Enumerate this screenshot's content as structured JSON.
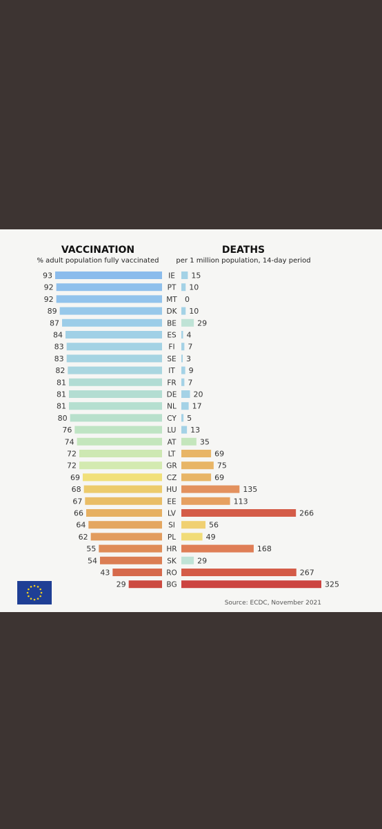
{
  "chart_data": {
    "type": "bar",
    "source": "Source: ECDC, November 2021",
    "logo": "eu-flag",
    "left": {
      "title": "VACCINATION",
      "subtitle": "% adult population fully vaccinated",
      "xlim": [
        0,
        100
      ]
    },
    "right": {
      "title": "DEATHS",
      "subtitle": "per 1 million population, 14-day period",
      "xlim": [
        0,
        330
      ]
    },
    "rows": [
      {
        "code": "IE",
        "vaccination": 93,
        "deaths": 15,
        "vacc_color": "#8bbcec",
        "death_color": "#a4d2e6"
      },
      {
        "code": "PT",
        "vaccination": 92,
        "deaths": 10,
        "vacc_color": "#8fc0ec",
        "death_color": "#a4d2e6"
      },
      {
        "code": "MT",
        "vaccination": 92,
        "deaths": 0,
        "vacc_color": "#92c3ec",
        "death_color": "#a4d2e6"
      },
      {
        "code": "DK",
        "vaccination": 89,
        "deaths": 10,
        "vacc_color": "#97c8ea",
        "death_color": "#a4d2e6"
      },
      {
        "code": "BE",
        "vaccination": 87,
        "deaths": 29,
        "vacc_color": "#9ccde8",
        "death_color": "#bfe3d6"
      },
      {
        "code": "ES",
        "vaccination": 84,
        "deaths": 4,
        "vacc_color": "#a0d0e6",
        "death_color": "#a4d2e6"
      },
      {
        "code": "FI",
        "vaccination": 83,
        "deaths": 7,
        "vacc_color": "#a3d2e4",
        "death_color": "#a4d2e6"
      },
      {
        "code": "SE",
        "vaccination": 83,
        "deaths": 3,
        "vacc_color": "#a6d4e2",
        "death_color": "#a4d2e6"
      },
      {
        "code": "IT",
        "vaccination": 82,
        "deaths": 9,
        "vacc_color": "#a9d6e0",
        "death_color": "#a4d2e6"
      },
      {
        "code": "FR",
        "vaccination": 81,
        "deaths": 7,
        "vacc_color": "#b1dcd4",
        "death_color": "#a4d2e6"
      },
      {
        "code": "DE",
        "vaccination": 81,
        "deaths": 20,
        "vacc_color": "#b3ddd2",
        "death_color": "#a4d2e6"
      },
      {
        "code": "NL",
        "vaccination": 81,
        "deaths": 17,
        "vacc_color": "#b5dfd0",
        "death_color": "#a4d2e6"
      },
      {
        "code": "CY",
        "vaccination": 80,
        "deaths": 5,
        "vacc_color": "#b8e0cc",
        "death_color": "#a4d2e6"
      },
      {
        "code": "LU",
        "vaccination": 76,
        "deaths": 13,
        "vacc_color": "#bfe4c4",
        "death_color": "#a4d2e6"
      },
      {
        "code": "AT",
        "vaccination": 74,
        "deaths": 35,
        "vacc_color": "#c4e6bc",
        "death_color": "#c4e6bc"
      },
      {
        "code": "LT",
        "vaccination": 72,
        "deaths": 69,
        "vacc_color": "#cde8b2",
        "death_color": "#e8b566"
      },
      {
        "code": "GR",
        "vaccination": 72,
        "deaths": 75,
        "vacc_color": "#d3eab0",
        "death_color": "#e8b566"
      },
      {
        "code": "CZ",
        "vaccination": 69,
        "deaths": 69,
        "vacc_color": "#f1e07a",
        "death_color": "#e8b566"
      },
      {
        "code": "HU",
        "vaccination": 68,
        "deaths": 135,
        "vacc_color": "#eccb6c",
        "death_color": "#e3915e"
      },
      {
        "code": "EE",
        "vaccination": 67,
        "deaths": 113,
        "vacc_color": "#e9bd66",
        "death_color": "#e6a060"
      },
      {
        "code": "LV",
        "vaccination": 66,
        "deaths": 266,
        "vacc_color": "#e6b062",
        "death_color": "#d45c48"
      },
      {
        "code": "SI",
        "vaccination": 64,
        "deaths": 56,
        "vacc_color": "#e4a660",
        "death_color": "#f0d072"
      },
      {
        "code": "PL",
        "vaccination": 62,
        "deaths": 49,
        "vacc_color": "#e29c5e",
        "death_color": "#f1dc78"
      },
      {
        "code": "HR",
        "vaccination": 55,
        "deaths": 168,
        "vacc_color": "#df8c58",
        "death_color": "#df7e56"
      },
      {
        "code": "SK",
        "vaccination": 54,
        "deaths": 29,
        "vacc_color": "#db7e54",
        "death_color": "#bfe3d6"
      },
      {
        "code": "RO",
        "vaccination": 43,
        "deaths": 267,
        "vacc_color": "#d66a4c",
        "death_color": "#d45c48"
      },
      {
        "code": "BG",
        "vaccination": 29,
        "deaths": 325,
        "vacc_color": "#cc4a40",
        "death_color": "#cc4440"
      }
    ]
  }
}
